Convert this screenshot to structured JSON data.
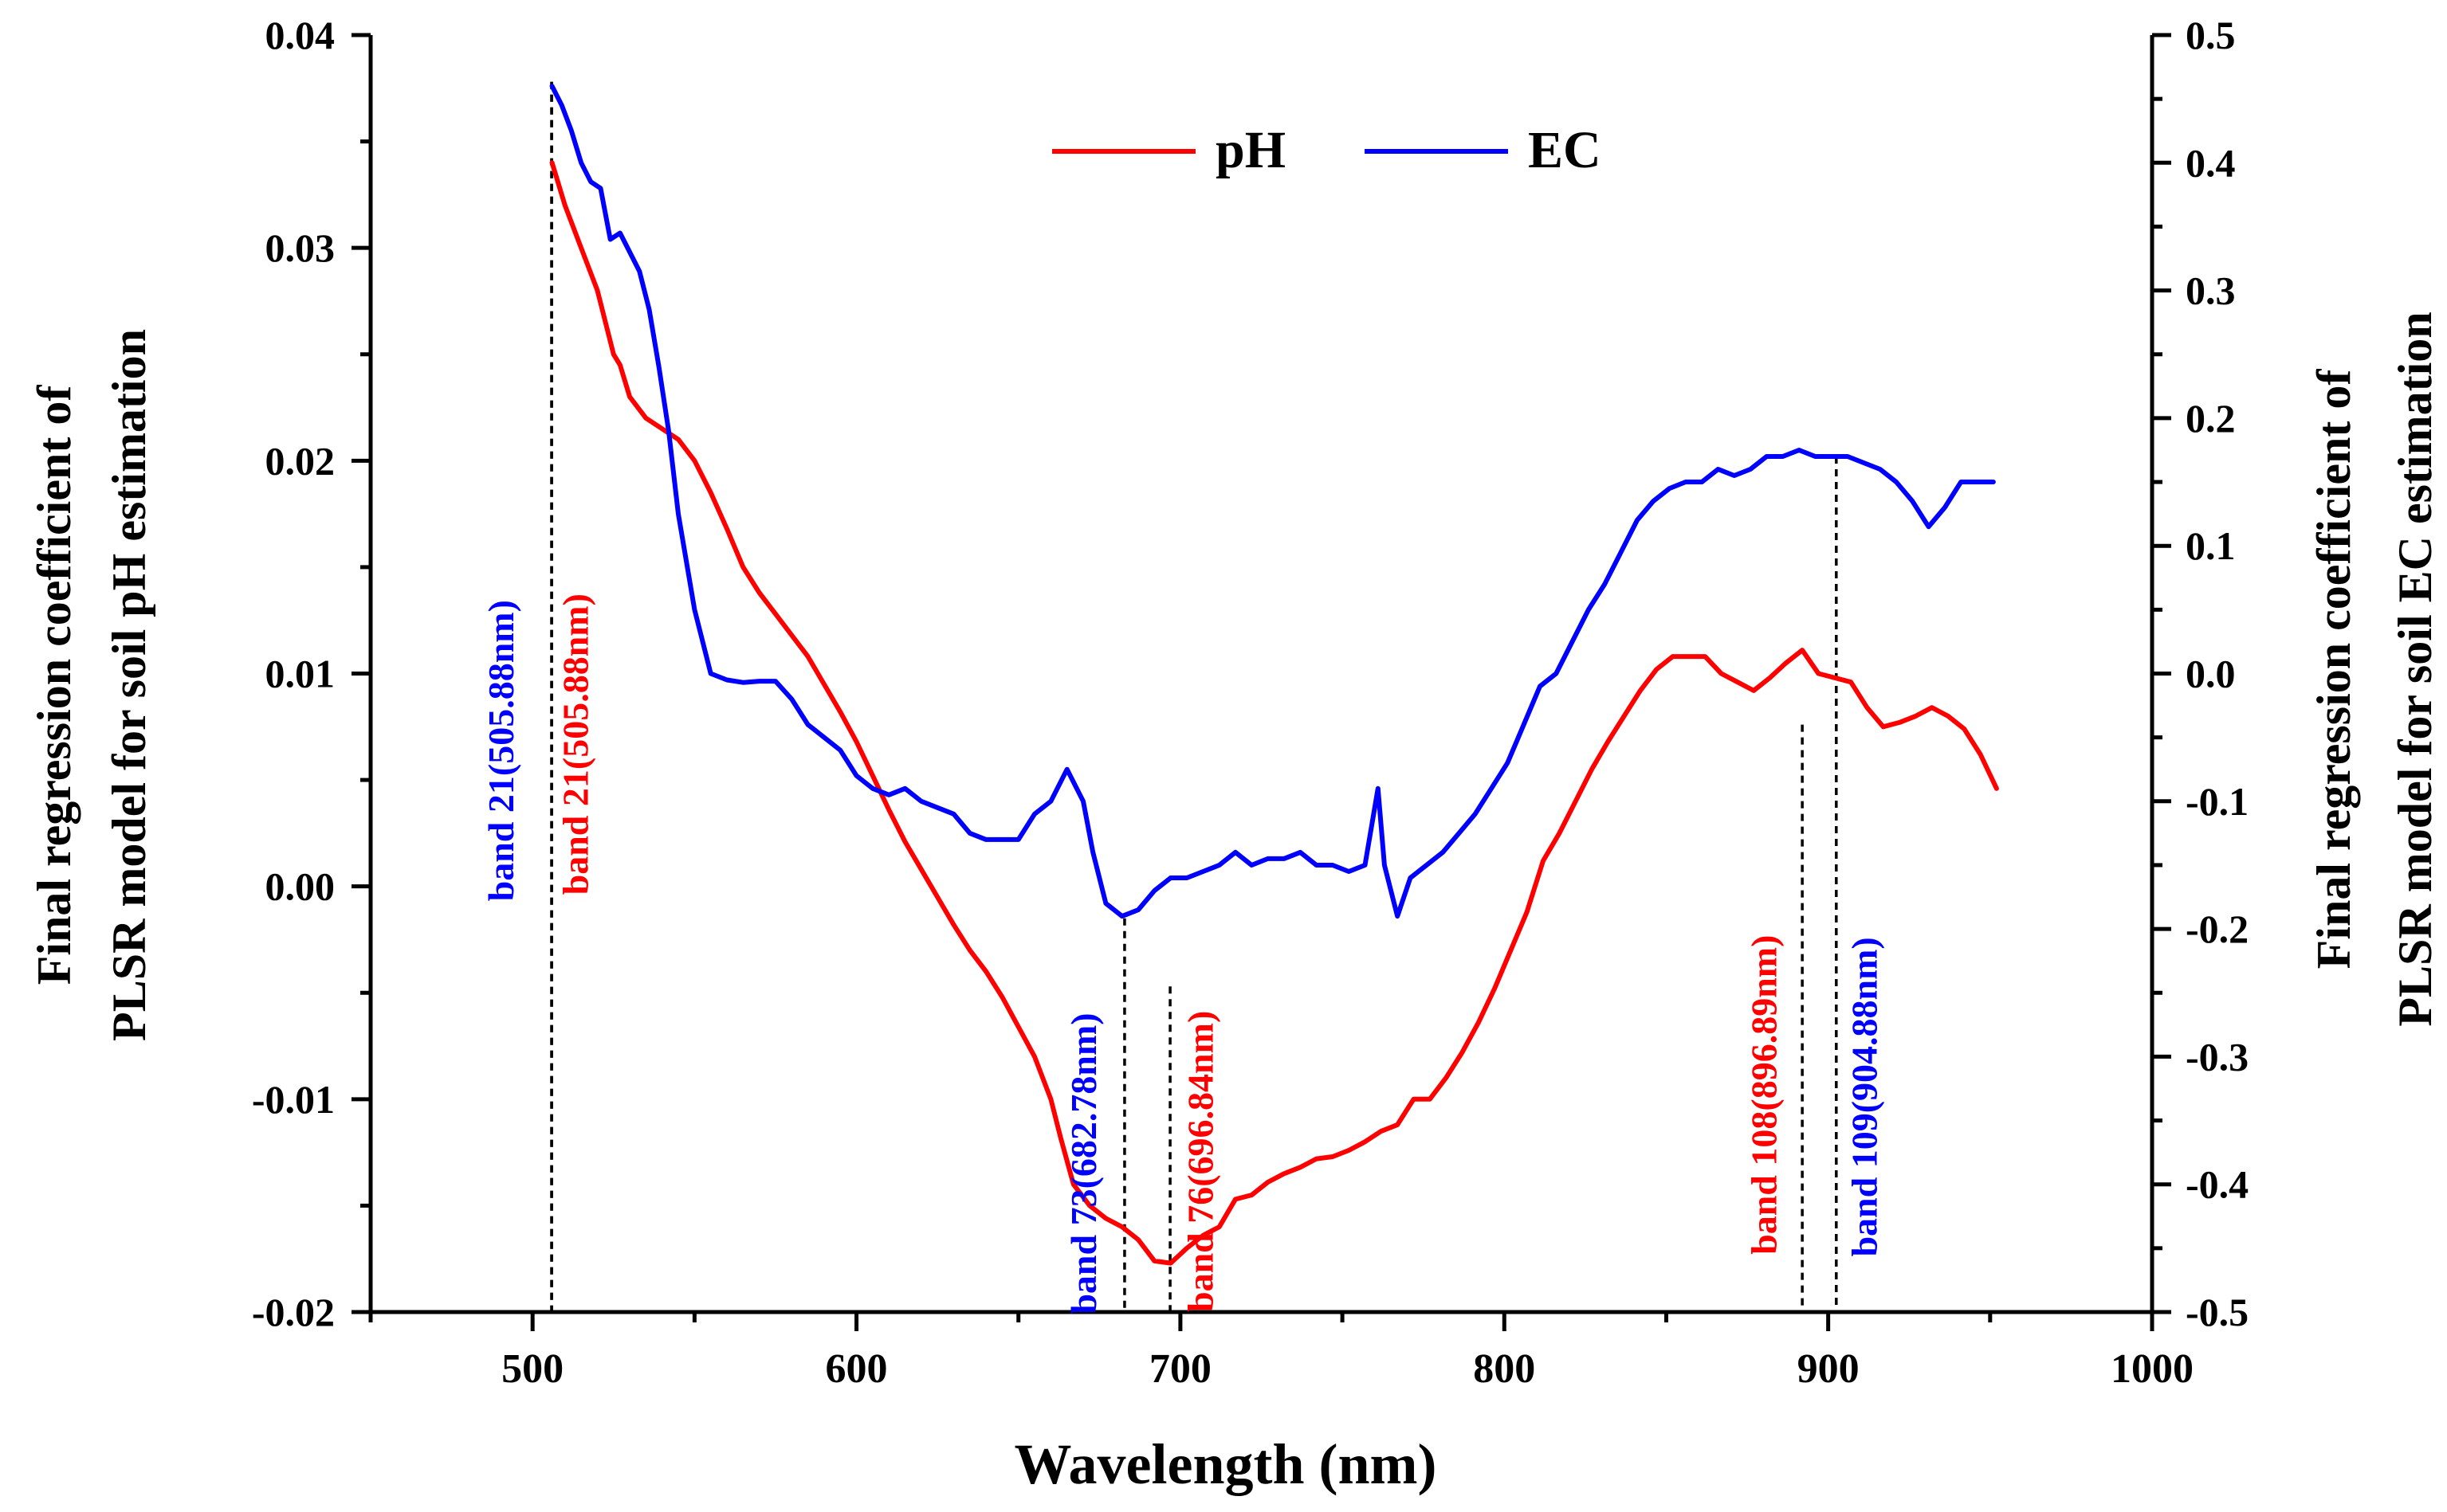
{
  "chart_data": {
    "type": "line",
    "title": "",
    "xlabel": "Wavelength (nm)",
    "ylabel_left": "Final regression coefficient of PLSR model for soil pH estimation",
    "ylabel_left_lines": [
      "Final regression coefficient of",
      "PLSR model for soil pH estimation"
    ],
    "ylabel_right": "Final regression coefficient of PLSR model for soil EC estimation",
    "ylabel_right_lines": [
      "Final regression coefficient of",
      "PLSR model for soil EC estimation"
    ],
    "xlim": [
      450,
      1000
    ],
    "ylim_left": [
      -0.02,
      0.04
    ],
    "ylim_right": [
      -0.5,
      0.5
    ],
    "x_ticks": [
      500,
      600,
      700,
      800,
      900,
      1000
    ],
    "x_tick_labels": [
      "500",
      "600",
      "700",
      "800",
      "900",
      "1000"
    ],
    "y_left_ticks": [
      -0.02,
      -0.01,
      0.0,
      0.01,
      0.02,
      0.03,
      0.04
    ],
    "y_left_tick_labels": [
      "-0.02",
      "-0.01",
      "0.00",
      "0.01",
      "0.02",
      "0.03",
      "0.04"
    ],
    "y_right_ticks": [
      -0.5,
      -0.4,
      -0.3,
      -0.2,
      -0.1,
      0.0,
      0.1,
      0.2,
      0.3,
      0.4,
      0.5
    ],
    "y_right_tick_labels": [
      "-0.5",
      "-0.4",
      "-0.3",
      "-0.2",
      "-0.1",
      "0.0",
      "0.1",
      "0.2",
      "0.3",
      "0.4",
      "0.5"
    ],
    "legend": {
      "position": "top-center",
      "entries": [
        "pH",
        "EC"
      ]
    },
    "series": [
      {
        "name": "pH",
        "axis": "left",
        "color": "#ff0000",
        "x": [
          506,
          510,
          515,
          520,
          525,
          527,
          530,
          535,
          540,
          545,
          550,
          555,
          560,
          565,
          570,
          575,
          580,
          585,
          590,
          595,
          600,
          605,
          610,
          615,
          620,
          625,
          630,
          635,
          640,
          645,
          650,
          655,
          660,
          663,
          667,
          672,
          677,
          682,
          687,
          692,
          697,
          702,
          707,
          712,
          717,
          722,
          727,
          732,
          737,
          742,
          747,
          752,
          757,
          762,
          767,
          772,
          777,
          782,
          787,
          792,
          797,
          802,
          807,
          812,
          817,
          822,
          827,
          832,
          837,
          842,
          847,
          852,
          857,
          862,
          867,
          872,
          877,
          882,
          887,
          892,
          897,
          902,
          907,
          912,
          917,
          922,
          927,
          932,
          937,
          942,
          947,
          952
        ],
        "values": [
          0.034,
          0.032,
          0.03,
          0.028,
          0.025,
          0.0245,
          0.023,
          0.022,
          0.0215,
          0.021,
          0.02,
          0.0185,
          0.0168,
          0.015,
          0.0138,
          0.0128,
          0.0118,
          0.0108,
          0.0095,
          0.0082,
          0.0068,
          0.0052,
          0.0036,
          0.0021,
          0.0008,
          -0.0005,
          -0.0018,
          -0.003,
          -0.004,
          -0.0052,
          -0.0066,
          -0.008,
          -0.01,
          -0.0118,
          -0.014,
          -0.015,
          -0.0156,
          -0.016,
          -0.0166,
          -0.0176,
          -0.0177,
          -0.017,
          -0.0164,
          -0.016,
          -0.0147,
          -0.0145,
          -0.0139,
          -0.0135,
          -0.0132,
          -0.0128,
          -0.0127,
          -0.0124,
          -0.012,
          -0.0115,
          -0.0112,
          -0.01,
          -0.01,
          -0.009,
          -0.0078,
          -0.0064,
          -0.0048,
          -0.003,
          -0.0012,
          0.0012,
          0.0025,
          0.004,
          0.0055,
          0.0068,
          0.008,
          0.0092,
          0.0102,
          0.0108,
          0.0108,
          0.0108,
          0.01,
          0.0096,
          0.0092,
          0.0098,
          0.0105,
          0.0111,
          0.01,
          0.0098,
          0.0096,
          0.0084,
          0.0075,
          0.0077,
          0.008,
          0.0084,
          0.008,
          0.0074,
          0.0062,
          0.0046
        ]
      },
      {
        "name": "EC",
        "axis": "right",
        "color": "#0000ff",
        "x": [
          506,
          509,
          512,
          515,
          518,
          521,
          524,
          527,
          530,
          533,
          536,
          539,
          542,
          545,
          550,
          555,
          560,
          565,
          570,
          575,
          580,
          585,
          590,
          595,
          600,
          605,
          610,
          615,
          620,
          625,
          630,
          635,
          640,
          645,
          650,
          655,
          660,
          665,
          670,
          673,
          677,
          682,
          687,
          692,
          697,
          702,
          707,
          712,
          717,
          722,
          727,
          732,
          737,
          742,
          747,
          752,
          757,
          761,
          763,
          767,
          771,
          776,
          781,
          786,
          791,
          796,
          801,
          806,
          811,
          816,
          821,
          826,
          831,
          836,
          841,
          846,
          851,
          856,
          861,
          866,
          871,
          876,
          881,
          886,
          891,
          896,
          901,
          906,
          911,
          916,
          921,
          926,
          931,
          936,
          941,
          946,
          951
        ],
        "values": [
          0.46,
          0.445,
          0.425,
          0.4,
          0.385,
          0.38,
          0.34,
          0.345,
          0.33,
          0.315,
          0.285,
          0.24,
          0.19,
          0.125,
          0.05,
          0.0,
          -0.005,
          -0.007,
          -0.006,
          -0.006,
          -0.02,
          -0.04,
          -0.05,
          -0.06,
          -0.08,
          -0.09,
          -0.095,
          -0.09,
          -0.1,
          -0.105,
          -0.11,
          -0.125,
          -0.13,
          -0.13,
          -0.13,
          -0.11,
          -0.1,
          -0.075,
          -0.1,
          -0.14,
          -0.18,
          -0.19,
          -0.185,
          -0.17,
          -0.16,
          -0.16,
          -0.155,
          -0.15,
          -0.14,
          -0.15,
          -0.145,
          -0.145,
          -0.14,
          -0.15,
          -0.15,
          -0.155,
          -0.15,
          -0.09,
          -0.15,
          -0.19,
          -0.16,
          -0.15,
          -0.14,
          -0.125,
          -0.11,
          -0.09,
          -0.07,
          -0.04,
          -0.01,
          0.0,
          0.025,
          0.05,
          0.07,
          0.095,
          0.12,
          0.135,
          0.145,
          0.15,
          0.15,
          0.16,
          0.155,
          0.16,
          0.17,
          0.17,
          0.175,
          0.17,
          0.17,
          0.17,
          0.165,
          0.16,
          0.15,
          0.135,
          0.115,
          0.13,
          0.15,
          0.15,
          0.15
        ]
      }
    ],
    "annotations": [
      {
        "text": "band 21(505.88nm)",
        "color": "#0000ff",
        "x": 505.88,
        "y_left": 0.0378,
        "label_x": 494,
        "label_y_left": -0.0007
      },
      {
        "text": "band 21(505.88nm)",
        "color": "#ff0000",
        "x": 505.88,
        "y_left": 0.0378,
        "label_x": 517,
        "label_y_left": -0.0004
      },
      {
        "text": "band 73(682.78nm)",
        "color": "#0000ff",
        "x": 682.78,
        "y_left": -0.0015,
        "label_x": 674,
        "label_y_left": -0.0201
      },
      {
        "text": "band 76(696.84nm)",
        "color": "#ff0000",
        "x": 696.84,
        "y_left": -0.0047,
        "label_x": 710,
        "label_y_left": -0.02
      },
      {
        "text": "band 108(896.89nm)",
        "color": "#ff0000",
        "x": 892.0,
        "y_left": 0.0076,
        "label_x": 884,
        "label_y_left": -0.0173
      },
      {
        "text": "band 109(904.88nm)",
        "color": "#0000ff",
        "x": 902.5,
        "y_left": 0.0202,
        "label_x": 915,
        "label_y_left": -0.0174
      }
    ]
  }
}
